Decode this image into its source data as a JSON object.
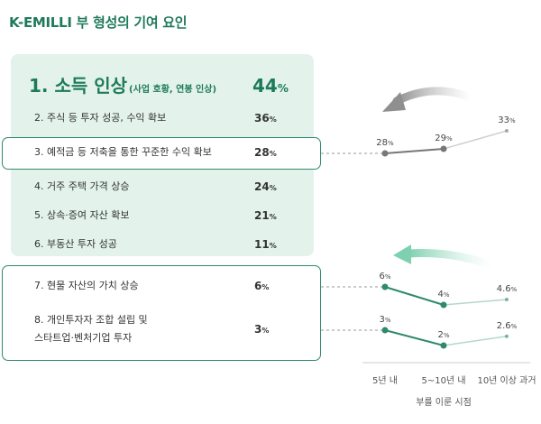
{
  "title": "K-EMILLI 부 형성의 기여 요인",
  "rows": [
    {
      "label": "1. 소득 인상",
      "sub": "(사업 호황, 연봉 인상)",
      "value": "44",
      "unit": "%"
    },
    {
      "label": "2. 주식 등 투자 성공, 수익 확보",
      "value": "36",
      "unit": "%"
    },
    {
      "label": "3. 예적금 등 저축을 통한 꾸준한 수익 확보",
      "value": "28",
      "unit": "%"
    },
    {
      "label": "4. 거주 주택 가격 상승",
      "value": "24",
      "unit": "%"
    },
    {
      "label": "5. 상속·증여 자산 확보",
      "value": "21",
      "unit": "%"
    },
    {
      "label": "6. 부동산 투자 성공",
      "value": "11",
      "unit": "%"
    },
    {
      "label": "7. 현물 자산의 가치 상승",
      "value": "6",
      "unit": "%"
    },
    {
      "label": "8. 개인투자자 조합 설립 및",
      "label2": "스타트업·벤처기업 투자",
      "value": "3",
      "unit": "%"
    }
  ],
  "chart_data": {
    "type": "line",
    "categories": [
      "5년 내",
      "5~10년 내",
      "10년 이상 과거"
    ],
    "xlabel": "부를 이룬 시점",
    "unit": "%",
    "series": [
      {
        "name": "3. 예적금 등 저축을 통한 꾸준한 수익 확보",
        "values": [
          28,
          29,
          33
        ],
        "labels": [
          "28",
          "29",
          "33"
        ],
        "color": "#777777"
      },
      {
        "name": "7. 현물 자산의 가치 상승",
        "values": [
          6,
          4,
          4.6
        ],
        "labels": [
          "6",
          "4",
          "4.6"
        ],
        "color": "#2e8a6a"
      },
      {
        "name": "8. 개인투자자 조합 설립 및 스타트업·벤처기업 투자",
        "values": [
          3,
          2,
          2.6
        ],
        "labels": [
          "3",
          "2",
          "2.6"
        ],
        "color": "#2e8a6a"
      }
    ]
  },
  "colors": {
    "accent": "#1f7a5c",
    "panel": "#e3f3ec",
    "line_gray": "#777777",
    "line_green": "#2e8a6a"
  }
}
